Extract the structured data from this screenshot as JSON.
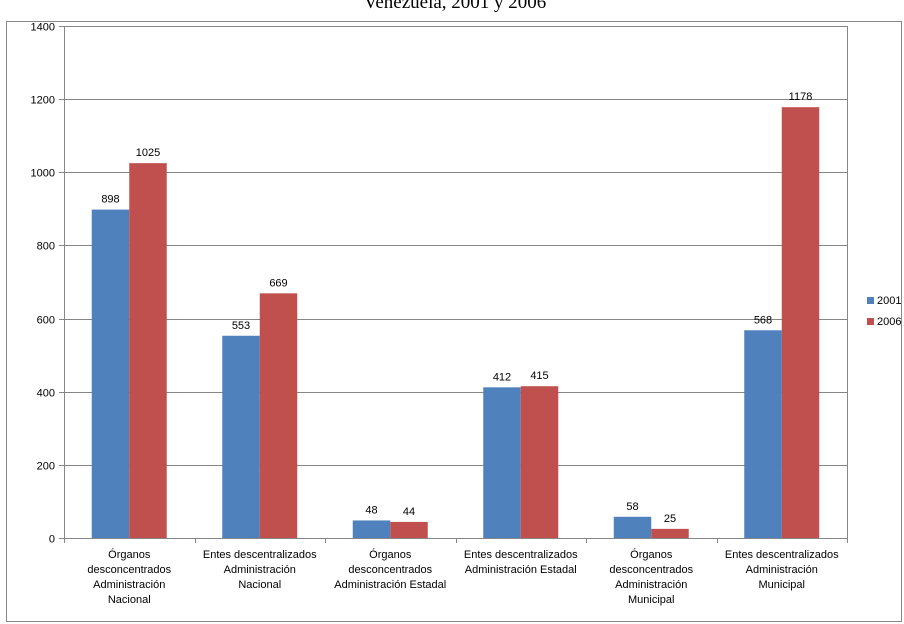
{
  "chart_data": {
    "type": "bar",
    "title": "Venezuela, 2001 y 2006",
    "xlabel": "",
    "ylabel": "",
    "ylim": [
      0,
      1400
    ],
    "yticks": [
      0,
      200,
      400,
      600,
      800,
      1000,
      1200,
      1400
    ],
    "grid": true,
    "legend_position": "right",
    "categories": [
      [
        "Órganos",
        "desconcentrados",
        "Administración",
        "Nacional"
      ],
      [
        "Entes descentralizados",
        "Administración",
        "Nacional"
      ],
      [
        "Órganos",
        "desconcentrados",
        "Administración Estadal"
      ],
      [
        "Entes descentralizados",
        "Administración Estadal"
      ],
      [
        "Órganos",
        "desconcentrados",
        "Administración",
        "Municipal"
      ],
      [
        "Entes descentralizados",
        "Administración",
        "Municipal"
      ]
    ],
    "series": [
      {
        "name": "2001",
        "color": "#4f81bd",
        "values": [
          898,
          553,
          48,
          412,
          58,
          568
        ]
      },
      {
        "name": "2006",
        "color": "#c0504d",
        "values": [
          1025,
          669,
          44,
          415,
          25,
          1178
        ]
      }
    ]
  }
}
